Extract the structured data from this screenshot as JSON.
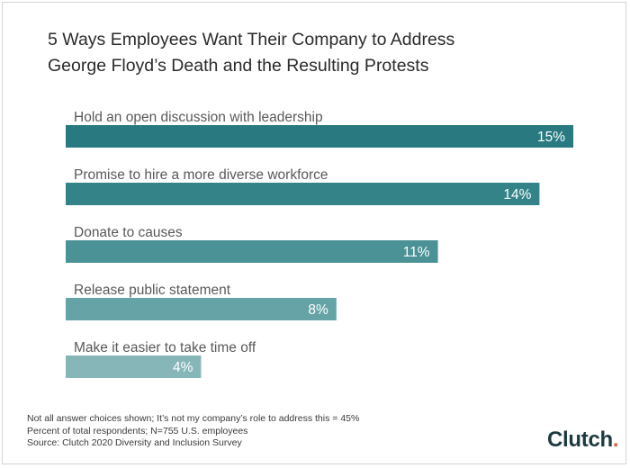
{
  "title": {
    "line1": "5 Ways Employees Want Their Company to Address",
    "line2": "George Floyd’s Death and the Resulting Protests"
  },
  "chart_data": {
    "type": "bar",
    "orientation": "horizontal",
    "title": "5 Ways Employees Want Their Company to Address George Floyd’s Death and the Resulting Protests",
    "categories": [
      "Hold an open discussion with leadership",
      "Promise to hire a more diverse workforce",
      "Donate to causes",
      "Release public statement",
      "Make it easier to take time off"
    ],
    "values": [
      15,
      14,
      11,
      8,
      4
    ],
    "value_labels": [
      "15%",
      "14%",
      "11%",
      "8%",
      "4%"
    ],
    "bar_colors": [
      "#287a80",
      "#338389",
      "#4b9296",
      "#66a3a7",
      "#86b6b8"
    ],
    "xlim": [
      0,
      15
    ],
    "grid": false,
    "legend": "none"
  },
  "notes": {
    "line1": "Not all answer choices shown; It’s not my company’s role to address this = 45%",
    "line2": "Percent of total respondents;  N=755 U.S. employees",
    "line3": "Source: Clutch 2020 Diversity and Inclusion Survey"
  },
  "logo": {
    "text": "Clutch",
    "dot_color": "#e05d47"
  }
}
